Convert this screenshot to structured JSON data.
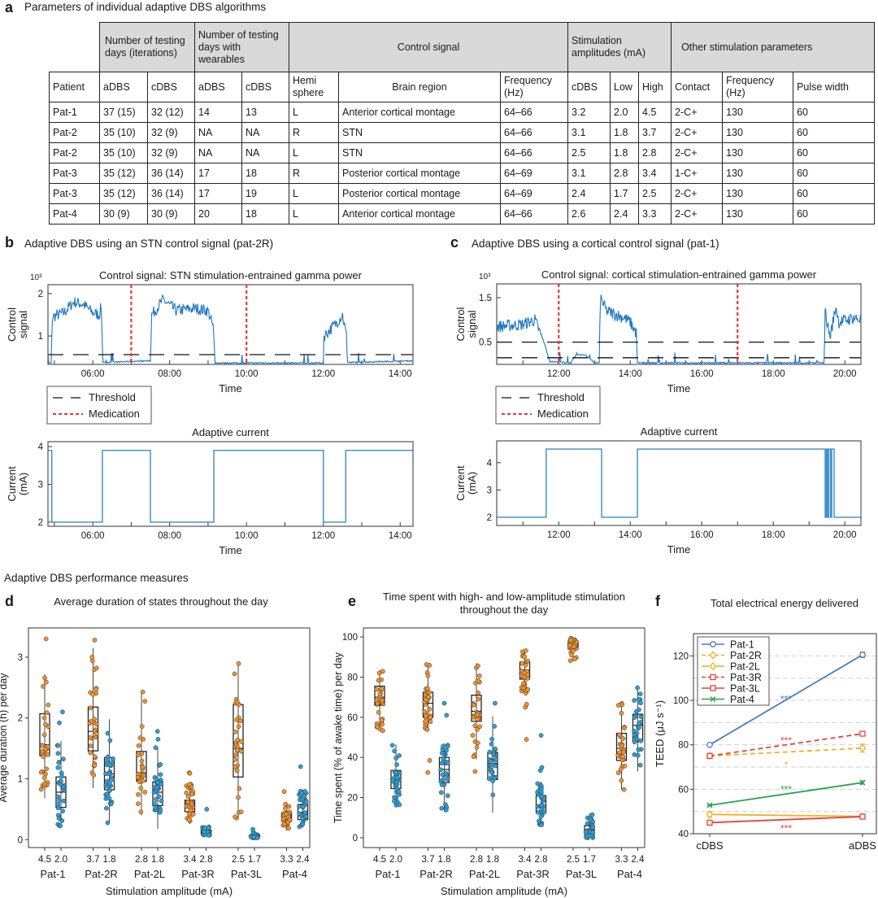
{
  "panel_a": {
    "label": "a",
    "title": "Parameters of individual adaptive DBS algorithms",
    "table": {
      "group_headers": [
        "Number of testing days (iterations)",
        "Number of testing days with wearables",
        "Control signal",
        "Stimulation amplitudes (mA)",
        "Other stimulation parameters"
      ],
      "columns": [
        "Patient",
        "aDBS",
        "cDBS",
        "aDBS",
        "cDBS",
        "Hemi sphere",
        "Brain region",
        "Frequency (Hz)",
        "cDBS",
        "Low",
        "High",
        "Contact",
        "Frequency (Hz)",
        "Pulse width"
      ],
      "rows": [
        [
          "Pat-1",
          "37 (15)",
          "32 (12)",
          "14",
          "13",
          "L",
          "Anterior cortical montage",
          "64–66",
          "3.2",
          "2.0",
          "4.5",
          "2-C+",
          "130",
          "60"
        ],
        [
          "Pat-2",
          "35 (10)",
          "32 (9)",
          "NA",
          "NA",
          "R",
          "STN",
          "64–66",
          "3.1",
          "1.8",
          "3.7",
          "2-C+",
          "130",
          "60"
        ],
        [
          "Pat-2",
          "35 (10)",
          "32 (9)",
          "NA",
          "NA",
          "L",
          "STN",
          "64–66",
          "2.5",
          "1.8",
          "2.8",
          "2-C+",
          "130",
          "60"
        ],
        [
          "Pat-3",
          "35 (12)",
          "36 (14)",
          "17",
          "18",
          "R",
          "Posterior cortical montage",
          "64–69",
          "3.1",
          "2.8",
          "3.4",
          "1-C+",
          "130",
          "60"
        ],
        [
          "Pat-3",
          "35 (12)",
          "36 (14)",
          "17",
          "19",
          "L",
          "Posterior cortical montage",
          "64–69",
          "2.4",
          "1.7",
          "2.5",
          "2-C+",
          "130",
          "60"
        ],
        [
          "Pat-4",
          "30 (9)",
          "30 (9)",
          "20",
          "18",
          "L",
          "Anterior cortical montage",
          "64–66",
          "2.6",
          "2.4",
          "3.3",
          "2-C+",
          "130",
          "60"
        ]
      ]
    }
  },
  "panel_b": {
    "label": "b",
    "title": "Adaptive DBS using an STN control signal (pat-2R)"
  },
  "panel_c": {
    "label": "c",
    "title": "Adaptive DBS using a cortical control signal (pat-1)"
  },
  "section_title": "Adaptive DBS performance measures",
  "panel_d": {
    "label": "d"
  },
  "panel_e": {
    "label": "e"
  },
  "panel_f": {
    "label": "f"
  },
  "colors": {
    "signal": "#1f77c0",
    "threshold": "#111111",
    "medication": "#e8373a",
    "high_amplitude": "#f0922e",
    "low_amplitude": "#2e9fd6"
  },
  "chart_data": [
    {
      "type": "line",
      "title": "Control signal: STN stimulation-entrained gamma power",
      "ylabel_lines": [
        "Control",
        "signal"
      ],
      "y_multiplier": "10³",
      "xlabel": "Time",
      "xlim": [
        "04:50",
        "14:20"
      ],
      "ylim": [
        0.33,
        2.21
      ],
      "xticks": [
        "06:00",
        "08:00",
        "10:00",
        "12:00",
        "14:00"
      ],
      "yticks": [
        1,
        2
      ],
      "series": [
        {
          "points": [
            [
              "04:50",
              0.35
            ],
            [
              "04:55",
              0.35
            ],
            [
              "04:57",
              1.45
            ],
            [
              "05:15",
              1.55
            ],
            [
              "05:30",
              1.8
            ],
            [
              "05:45",
              1.75
            ],
            [
              "06:00",
              1.55
            ],
            [
              "06:10",
              1.5
            ],
            [
              "06:13",
              1.7
            ],
            [
              "06:16",
              0.36
            ],
            [
              "07:30",
              0.4
            ],
            [
              "07:32",
              1.5
            ],
            [
              "07:50",
              1.85
            ],
            [
              "08:10",
              1.6
            ],
            [
              "08:40",
              1.65
            ],
            [
              "09:00",
              1.6
            ],
            [
              "09:08",
              1.2
            ],
            [
              "09:11",
              0.35
            ],
            [
              "12:00",
              0.35
            ],
            [
              "12:01",
              1.0
            ],
            [
              "12:20",
              1.3
            ],
            [
              "12:30",
              1.5
            ],
            [
              "12:36",
              1.0
            ],
            [
              "12:38",
              0.36
            ],
            [
              "14:20",
              0.4
            ]
          ]
        }
      ],
      "thresholds": [
        0.56
      ],
      "medication_times": [
        "07:00",
        "10:00"
      ],
      "legend": [
        "Threshold",
        "Medication"
      ]
    },
    {
      "type": "line",
      "title": "Adaptive current",
      "ylabel_lines": [
        "Current",
        "(mA)"
      ],
      "xlabel": "Time",
      "xlim": [
        "04:50",
        "14:20"
      ],
      "ylim": [
        1.89,
        4.13
      ],
      "xticks": [
        "06:00",
        "08:00",
        "10:00",
        "12:00",
        "14:00"
      ],
      "yticks": [
        2,
        3,
        4
      ],
      "series": [
        {
          "step": true,
          "points": [
            [
              "04:50",
              3.9
            ],
            [
              "04:56",
              2.0
            ],
            [
              "06:15",
              3.9
            ],
            [
              "07:30",
              2.0
            ],
            [
              "09:09",
              3.9
            ],
            [
              "12:00",
              2.0
            ],
            [
              "12:35",
              3.9
            ],
            [
              "14:20",
              3.9
            ]
          ]
        }
      ]
    },
    {
      "type": "line",
      "title": "Control signal: cortical stimulation-entrained gamma power",
      "ylabel_lines": [
        "Control",
        "signal"
      ],
      "y_multiplier": "10³",
      "xlabel": "Time",
      "xlim": [
        "10:16",
        "20:27"
      ],
      "ylim": [
        0,
        1.81
      ],
      "xticks": [
        "12:00",
        "14:00",
        "16:00",
        "18:00",
        "20:00"
      ],
      "yticks": [
        0.5,
        1.5
      ],
      "series": [
        {
          "points": [
            [
              "10:16",
              0.85
            ],
            [
              "11:00",
              0.9
            ],
            [
              "11:20",
              1.0
            ],
            [
              "11:35",
              0.5
            ],
            [
              "11:45",
              0.05
            ],
            [
              "12:20",
              0.02
            ],
            [
              "12:30",
              0.2
            ],
            [
              "12:45",
              0.2
            ],
            [
              "13:00",
              0.02
            ],
            [
              "13:08",
              0.02
            ],
            [
              "13:10",
              1.5
            ],
            [
              "13:20",
              1.2
            ],
            [
              "13:50",
              1.05
            ],
            [
              "14:00",
              0.95
            ],
            [
              "14:10",
              0.7
            ],
            [
              "14:12",
              0.02
            ],
            [
              "19:25",
              0.02
            ],
            [
              "19:27",
              1.2
            ],
            [
              "19:35",
              0.6
            ],
            [
              "19:45",
              1.3
            ],
            [
              "19:50",
              0.95
            ],
            [
              "20:15",
              1.05
            ],
            [
              "20:27",
              1.0
            ]
          ]
        }
      ],
      "thresholds": [
        0.5,
        0.15
      ],
      "medication_times": [
        "12:00",
        "17:00"
      ],
      "legend": [
        "Threshold",
        "Medication"
      ]
    },
    {
      "type": "line",
      "title": "Adaptive current",
      "ylabel_lines": [
        "Current",
        "(mA)"
      ],
      "xlabel": "Time",
      "xlim": [
        "10:16",
        "20:27"
      ],
      "ylim": [
        1.7,
        4.8
      ],
      "xticks": [
        "12:00",
        "14:00",
        "16:00",
        "18:00",
        "20:00"
      ],
      "yticks": [
        2,
        3,
        4
      ],
      "series": [
        {
          "step": true,
          "points": [
            [
              "10:16",
              2.0
            ],
            [
              "11:39",
              4.5
            ],
            [
              "13:12",
              2.0
            ],
            [
              "14:12",
              4.5
            ],
            [
              "19:27",
              2.0
            ],
            [
              "19:29",
              4.5
            ],
            [
              "19:31",
              2.0
            ],
            [
              "19:33",
              4.5
            ],
            [
              "19:36",
              2.0
            ],
            [
              "19:38",
              4.5
            ],
            [
              "19:42",
              2.0
            ],
            [
              "20:27",
              2.0
            ]
          ]
        }
      ]
    },
    {
      "type": "box",
      "title_lines": [
        "Average duration of states throughout the day"
      ],
      "ylabel": "Average duration (h) per day",
      "xlabel": "Stimulation amplitude (mA)",
      "ylim": [
        -0.13,
        3.48
      ],
      "yticks": [
        0,
        1,
        2,
        3
      ],
      "categories": [
        "Pat-1",
        "Pat-2R",
        "Pat-2L",
        "Pat-3R",
        "Pat-3L",
        "Pat-4"
      ],
      "amplitudes": [
        [
          "4.5",
          "2.0"
        ],
        [
          "3.7",
          "1.8"
        ],
        [
          "2.8",
          "1.8"
        ],
        [
          "3.4",
          "2.8"
        ],
        [
          "2.5",
          "1.7"
        ],
        [
          "3.3",
          "2.4"
        ]
      ],
      "series": [
        {
          "color": "#f0922e",
          "stats": [
            [
              0.68,
              1.38,
              1.56,
              2.07,
              2.72
            ],
            [
              0.85,
              1.46,
              1.78,
              2.18,
              3.15
            ],
            [
              0.4,
              0.96,
              1.1,
              1.45,
              2.45
            ],
            [
              0.26,
              0.46,
              0.55,
              0.65,
              0.92
            ],
            [
              0.35,
              1.03,
              1.5,
              2.22,
              2.92
            ],
            [
              0.15,
              0.3,
              0.36,
              0.44,
              0.62
            ]
          ],
          "outliers": [
            [
              3.3
            ],
            [
              3.28
            ],
            [],
            [
              1.1,
              1.09
            ],
            [],
            [
              0.79
            ]
          ]
        },
        {
          "color": "#2e9fd6",
          "stats": [
            [
              0.2,
              0.53,
              0.78,
              1.03,
              1.62
            ],
            [
              0.27,
              0.82,
              1.08,
              1.35,
              1.98
            ],
            [
              0.18,
              0.56,
              0.78,
              0.95,
              1.52
            ],
            [
              0.07,
              0.09,
              0.12,
              0.16,
              0.22
            ],
            [
              0.03,
              0.04,
              0.06,
              0.08,
              0.12
            ],
            [
              0.2,
              0.33,
              0.45,
              0.58,
              0.82
            ]
          ],
          "outliers": [
            [
              1.92,
              2.1
            ],
            [],
            [
              1.65,
              1.78
            ],
            [
              0.5
            ],
            [
              0.17
            ],
            [
              1.2
            ]
          ]
        }
      ]
    },
    {
      "type": "box",
      "title_lines": [
        "Time spent with high- and low-amplitude stimulation",
        "throughout the day"
      ],
      "ylabel": "Time spent (% of awake time) per day",
      "xlabel": "Stimulation amplitude (mA)",
      "ylim": [
        -4.9,
        104.5
      ],
      "yticks": [
        0,
        20,
        40,
        60,
        80,
        100
      ],
      "categories": [
        "Pat-1",
        "Pat-2R",
        "Pat-2L",
        "Pat-3R",
        "Pat-3L",
        "Pat-4"
      ],
      "amplitudes": [
        [
          "4.5",
          "2.0"
        ],
        [
          "3.7",
          "1.8"
        ],
        [
          "2.8",
          "1.8"
        ],
        [
          "3.4",
          "2.8"
        ],
        [
          "2.5",
          "1.7"
        ],
        [
          "3.3",
          "2.4"
        ]
      ],
      "series": [
        {
          "color": "#f0922e",
          "stats": [
            [
              53,
              66,
              70,
              75.5,
              83.5
            ],
            [
              53,
              60,
              67,
              72.5,
              86.5
            ],
            [
              39,
              58,
              63,
              71,
              87
            ],
            [
              72,
              79,
              83.5,
              87.5,
              94
            ],
            [
              88,
              94,
              96,
              98,
              99.5
            ],
            [
              24,
              38.5,
              44.5,
              52,
              67
            ]
          ],
          "outliers": [
            [],
            [
              38.5,
              32.5
            ],
            [
              33
            ],
            [
              65,
              66.5,
              49
            ],
            [],
            []
          ]
        },
        {
          "color": "#2e9fd6",
          "stats": [
            [
              16,
              24.5,
              29,
              33.5,
              46.5
            ],
            [
              13,
              27.5,
              34,
              40,
              47
            ],
            [
              12.5,
              29,
              37,
              42.5,
              60.5
            ],
            [
              6,
              12.5,
              16,
              21,
              28
            ],
            [
              0,
              2,
              4,
              6,
              12
            ],
            [
              33,
              48,
              56,
              61.5,
              75.5
            ]
          ],
          "outliers": [
            [],
            [
              61,
              67
            ],
            [
              67
            ],
            [
              33.5,
              35,
              51
            ],
            [],
            []
          ]
        }
      ]
    },
    {
      "type": "line",
      "title": "Total electrical energy delivered",
      "ylabel": "TEED (μJ s⁻¹)",
      "categories": [
        "cDBS",
        "aDBS"
      ],
      "ylim": [
        40,
        130
      ],
      "yticks": [
        40,
        60,
        80,
        100,
        120
      ],
      "grid": true,
      "legend_position": "top-left",
      "series": [
        {
          "name": "Pat-1",
          "color": "#4a78c4",
          "dash": false,
          "marker": "circle",
          "values": [
            80,
            120.5
          ],
          "errors": [
            0.5,
            1.2
          ]
        },
        {
          "name": "Pat-2R",
          "color": "#f2b01e",
          "dash": true,
          "marker": "diamond",
          "values": [
            75,
            78.5
          ],
          "errors": [
            0.8,
            1.8
          ]
        },
        {
          "name": "Pat-2L",
          "color": "#f2b01e",
          "dash": false,
          "marker": "diamond",
          "values": [
            48.7,
            47.8
          ],
          "errors": [
            1.2,
            1.0
          ]
        },
        {
          "name": "Pat-3R",
          "color": "#e8433a",
          "dash": true,
          "marker": "square",
          "values": [
            75,
            85
          ],
          "errors": [
            0.5,
            0.6
          ]
        },
        {
          "name": "Pat-3L",
          "color": "#e8433a",
          "dash": false,
          "marker": "square",
          "values": [
            45,
            47.7
          ],
          "errors": [
            0.4,
            0.6
          ]
        },
        {
          "name": "Pat-4",
          "color": "#22a34a",
          "dash": false,
          "marker": "x",
          "values": [
            52.8,
            63
          ],
          "errors": [
            0.3,
            0.7
          ]
        }
      ],
      "annotations": [
        {
          "text": "***",
          "y": 101,
          "color": "#4a78c4"
        },
        {
          "text": "***",
          "y": 82.3,
          "color": "#e8433a"
        },
        {
          "text": "*",
          "y": 71.2,
          "color": "#f2b01e"
        },
        {
          "text": "***",
          "y": 60.3,
          "color": "#22a34a"
        },
        {
          "text": "***",
          "y": 42.8,
          "color": "#e8433a"
        }
      ]
    }
  ]
}
